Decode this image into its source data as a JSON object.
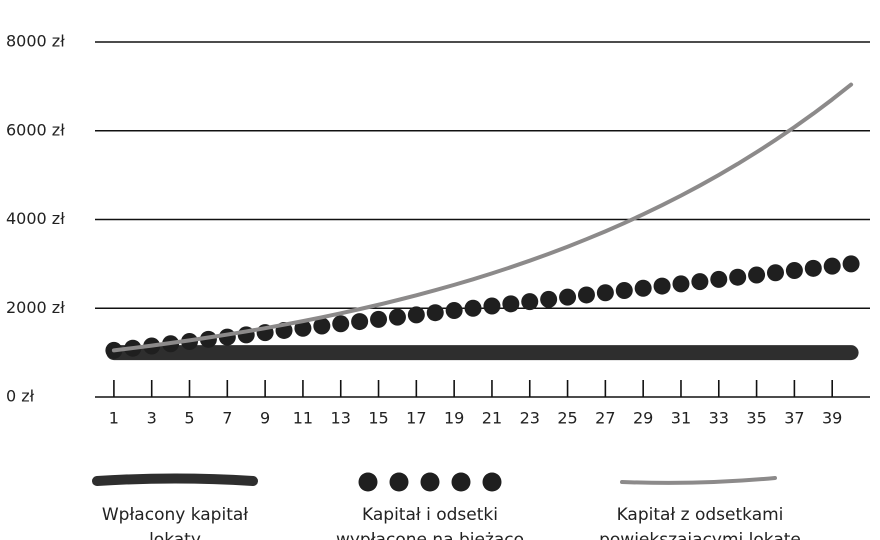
{
  "chart_data": {
    "type": "line",
    "x": [
      1,
      2,
      3,
      4,
      5,
      6,
      7,
      8,
      9,
      10,
      11,
      12,
      13,
      14,
      15,
      16,
      17,
      18,
      19,
      20,
      21,
      22,
      23,
      24,
      25,
      26,
      27,
      28,
      29,
      30,
      31,
      32,
      33,
      34,
      35,
      36,
      37,
      38,
      39,
      40
    ],
    "series": [
      {
        "name": "Wpłacony kapitał lokaty",
        "color": "#2e2e2e",
        "style": "brush",
        "values": [
          1000,
          1000,
          1000,
          1000,
          1000,
          1000,
          1000,
          1000,
          1000,
          1000,
          1000,
          1000,
          1000,
          1000,
          1000,
          1000,
          1000,
          1000,
          1000,
          1000,
          1000,
          1000,
          1000,
          1000,
          1000,
          1000,
          1000,
          1000,
          1000,
          1000,
          1000,
          1000,
          1000,
          1000,
          1000,
          1000,
          1000,
          1000,
          1000,
          1000
        ]
      },
      {
        "name": "Kapitał i odsetki wypłacone na bieżąco",
        "color": "#1f1f1f",
        "style": "dots",
        "values": [
          1050,
          1100,
          1150,
          1200,
          1250,
          1300,
          1350,
          1400,
          1450,
          1500,
          1550,
          1600,
          1650,
          1700,
          1750,
          1800,
          1850,
          1900,
          1950,
          2000,
          2050,
          2100,
          2150,
          2200,
          2250,
          2300,
          2350,
          2400,
          2450,
          2500,
          2550,
          2600,
          2650,
          2700,
          2750,
          2800,
          2850,
          2900,
          2950,
          3000
        ]
      },
      {
        "name": "Kapitał z odsetkami powiększającymi lokatę",
        "color": "#8c8a8a",
        "style": "line",
        "values": [
          1050,
          1103,
          1158,
          1216,
          1276,
          1340,
          1407,
          1477,
          1551,
          1629,
          1710,
          1796,
          1886,
          1980,
          2079,
          2183,
          2292,
          2407,
          2527,
          2653,
          2786,
          2925,
          3072,
          3225,
          3386,
          3556,
          3733,
          3920,
          4116,
          4322,
          4538,
          4765,
          5003,
          5253,
          5516,
          5792,
          6081,
          6385,
          6705,
          7040
        ]
      }
    ],
    "xlim": [
      0,
      41
    ],
    "xticks": [
      1,
      3,
      5,
      7,
      9,
      11,
      13,
      15,
      17,
      19,
      21,
      23,
      25,
      27,
      29,
      31,
      33,
      35,
      37,
      39
    ],
    "ylim": [
      0,
      8000
    ],
    "yticks": [
      {
        "value": 0,
        "label": "0 zł"
      },
      {
        "value": 2000,
        "label": "2000 zł"
      },
      {
        "value": 4000,
        "label": "4000 zł"
      },
      {
        "value": 6000,
        "label": "6000 zł"
      },
      {
        "value": 8000,
        "label": "8000 zł"
      }
    ],
    "grid": true
  }
}
